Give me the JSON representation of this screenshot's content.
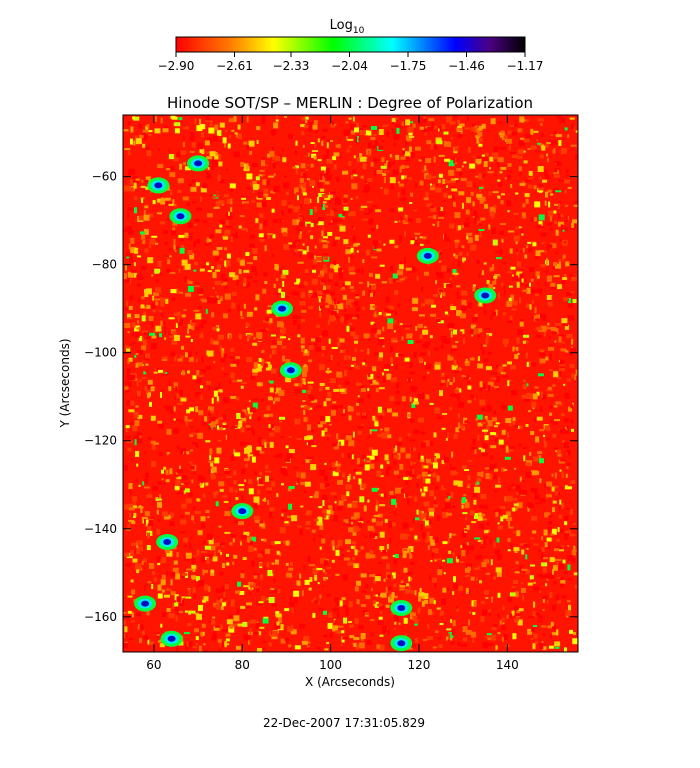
{
  "chart_data": {
    "type": "heatmap",
    "title": "Hinode SOT/SP – MERLIN : Degree of Polarization",
    "xlabel": "X (Arcseconds)",
    "ylabel": "Y (Arcseconds)",
    "xlim": [
      53,
      156
    ],
    "ylim": [
      -168,
      -46
    ],
    "x_ticks": [
      60,
      80,
      100,
      120,
      140
    ],
    "x_tick_labels": [
      "60",
      "80",
      "100",
      "120",
      "140"
    ],
    "y_ticks": [
      -60,
      -80,
      -100,
      -120,
      -140,
      -160
    ],
    "y_tick_labels": [
      "−60",
      "−80",
      "−100",
      "−120",
      "−140",
      "−160"
    ],
    "colorbar": {
      "title_base": "Log",
      "title_subscript": "10",
      "range": [
        -2.9,
        -1.17
      ],
      "ticks": [
        -2.9,
        -2.61,
        -2.33,
        -2.04,
        -1.75,
        -1.46,
        -1.17
      ],
      "tick_labels": [
        "−2.90",
        "−2.61",
        "−2.33",
        "−2.04",
        "−1.75",
        "−1.46",
        "−1.17"
      ],
      "colors": [
        "#ff0000",
        "#ff8000",
        "#ffff00",
        "#00ff00",
        "#00ffff",
        "#0000ff",
        "#4b0082",
        "#000000"
      ]
    },
    "colormap": [
      "#ff0000",
      "#ff7f00",
      "#ffff00",
      "#00ff00",
      "#00e8ff",
      "#0000ff",
      "#000020"
    ],
    "grid": false,
    "high_polarization_regions": [
      {
        "x": 61,
        "y": -62,
        "value": -1.5
      },
      {
        "x": 66,
        "y": -69,
        "value": -1.6
      },
      {
        "x": 70,
        "y": -57,
        "value": -1.7
      },
      {
        "x": 89,
        "y": -90,
        "value": -1.5
      },
      {
        "x": 91,
        "y": -104,
        "value": -1.7
      },
      {
        "x": 122,
        "y": -78,
        "value": -1.6
      },
      {
        "x": 135,
        "y": -87,
        "value": -1.5
      },
      {
        "x": 80,
        "y": -136,
        "value": -1.5
      },
      {
        "x": 63,
        "y": -143,
        "value": -1.5
      },
      {
        "x": 58,
        "y": -157,
        "value": -1.6
      },
      {
        "x": 116,
        "y": -158,
        "value": -1.6
      },
      {
        "x": 64,
        "y": -165,
        "value": -1.6
      },
      {
        "x": 116,
        "y": -166,
        "value": -1.5
      }
    ]
  },
  "timestamp": "22-Dec-2007 17:31:05.829"
}
